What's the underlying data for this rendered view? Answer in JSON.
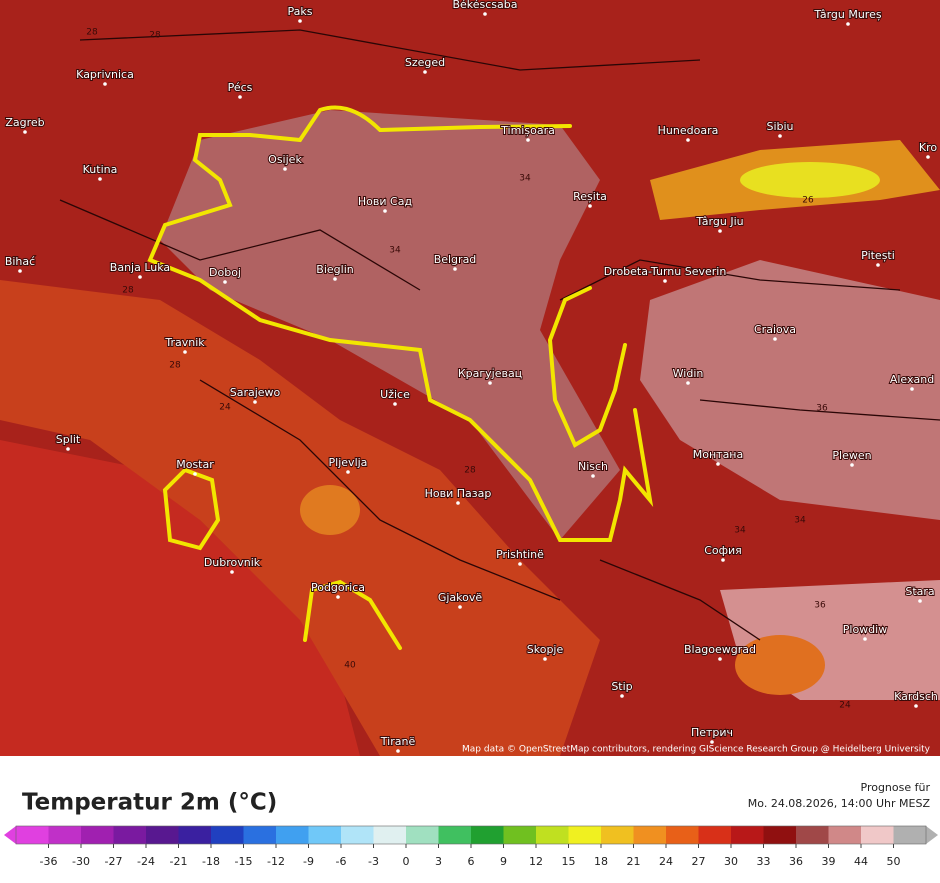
{
  "map": {
    "cities": [
      "Paks",
      "Békéscsaba",
      "Târgu Mureș",
      "Kaprivnica",
      "Pécs",
      "Szeged",
      "Zagreb",
      "Osijek",
      "Timișoara",
      "Hunedoara",
      "Sibiu",
      "Kutina",
      "Нови Сад",
      "Reșita",
      "Târgu Jiu",
      "Bihać",
      "Banja Luka",
      "Doboj",
      "Bieglin",
      "Belgrad",
      "Drobeta-Turnu Severin",
      "Pitești",
      "Travnik",
      "Craiova",
      "Sarajewo",
      "Užice",
      "Крагујевац",
      "Widin",
      "Alexand",
      "Split",
      "Mostar",
      "Pljevlja",
      "Nisch",
      "Монтана",
      "Plewen",
      "Нови Пазар",
      "Dubrovnik",
      "Prishtinë",
      "София",
      "Podgorica",
      "Gjakovë",
      "Skopje",
      "Blagoewgrad",
      "Plowdiw",
      "Stip",
      "Tiranë",
      "Петрич",
      "Kardsch",
      "Stara",
      "Kro"
    ],
    "isotherm_labels": [
      "28",
      "28",
      "34",
      "34",
      "28",
      "28",
      "36",
      "34",
      "36",
      "24",
      "28",
      "26",
      "34",
      "24",
      "40"
    ],
    "attribution": "Map data © OpenStreetMap contributors, rendering GIScience Research Group @ Heidelberg University"
  },
  "legend": {
    "title": "Temperatur 2m (°C)",
    "forecast_label": "Prognose für",
    "forecast_time": "Mo. 24.08.2026, 14:00 Uhr MESZ",
    "ticks": [
      -36,
      -30,
      -27,
      -24,
      -21,
      -18,
      -15,
      -12,
      -9,
      -6,
      -3,
      0,
      3,
      6,
      9,
      12,
      15,
      18,
      21,
      24,
      27,
      30,
      33,
      36,
      39,
      44,
      50
    ],
    "colors": [
      "#e040e0",
      "#c030c8",
      "#a020b0",
      "#7a1aa0",
      "#581890",
      "#3a20a0",
      "#2040c0",
      "#2a70e0",
      "#40a0f0",
      "#70c8f8",
      "#b0e4f8",
      "#e0f0f0",
      "#a0e0c0",
      "#40c060",
      "#20a030",
      "#70c020",
      "#c0e020",
      "#f0f020",
      "#f0c020",
      "#f09020",
      "#e86018",
      "#d83018",
      "#b81818",
      "#901010",
      "#a04848",
      "#d08888",
      "#f0c8c8",
      "#b0b0b0"
    ]
  }
}
